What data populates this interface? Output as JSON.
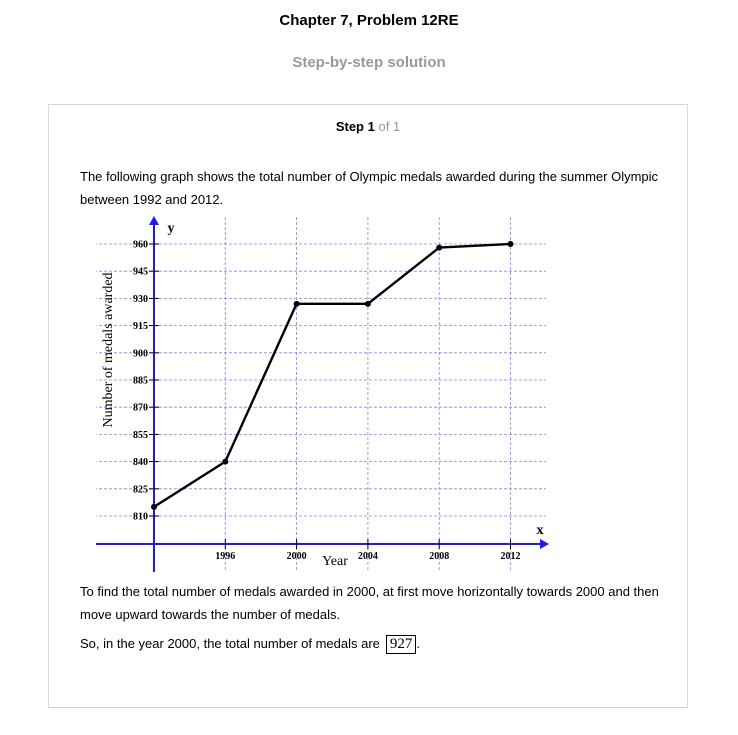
{
  "header": {
    "title": "Chapter 7, Problem 12RE",
    "subtitle": "Step-by-step solution"
  },
  "step": {
    "label": "Step 1",
    "of": "of 1"
  },
  "text": {
    "intro": "The following graph shows the total number of Olympic medals awarded during the summer Olympic between 1992 and 2012.",
    "explain": "To find the total number of medals awarded in 2000, at first move horizontally towards 2000 and then move upward towards the number of medals.",
    "conclusion": "So, in the year 2000, the total number of medals are",
    "answer": "927",
    "answer_suffix": "."
  },
  "chart_data": {
    "type": "line",
    "xlabel": "Year",
    "ylabel": "Number of medals awarded",
    "x_axis_name": "x",
    "y_axis_name": "y",
    "x": [
      1992,
      1996,
      2000,
      2004,
      2008,
      2012
    ],
    "y": [
      815,
      840,
      927,
      927,
      958,
      960
    ],
    "x_ticks": [
      1996,
      2000,
      2004,
      2008,
      2012
    ],
    "y_ticks": [
      810,
      825,
      840,
      855,
      870,
      885,
      900,
      915,
      930,
      945,
      960
    ],
    "y_tick_labels": [
      "810",
      "825",
      "840",
      "855",
      "870",
      "885",
      "900",
      "915",
      "930",
      "945",
      "960"
    ],
    "xlim": [
      1992,
      2012
    ],
    "ylim": [
      810,
      960
    ],
    "grid": true,
    "colors": {
      "line": "#000000",
      "axis": "#1a1aff",
      "grid": "#8080ff"
    }
  }
}
